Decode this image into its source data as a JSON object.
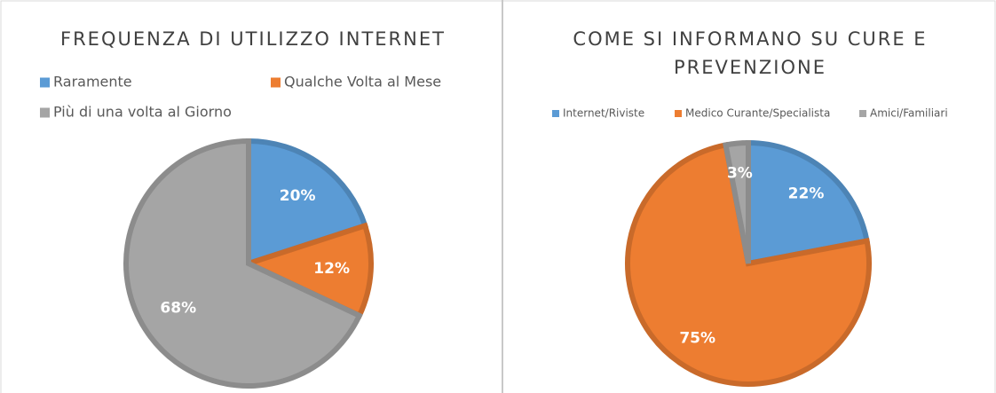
{
  "chart_data": [
    {
      "type": "pie",
      "title": "FREQUENZA DI UTILIZZO INTERNET",
      "categories": [
        "Raramente",
        "Qualche Volta al Mese",
        "Più di una volta al Giorno"
      ],
      "values": [
        20,
        12,
        68
      ],
      "value_labels": [
        "20%",
        "12%",
        "68%"
      ],
      "colors": [
        "#5b9bd5",
        "#ed7d31",
        "#a5a5a5"
      ],
      "legend": "top"
    },
    {
      "type": "pie",
      "title": "COME SI INFORMANO SU CURE E PREVENZIONE",
      "categories": [
        "Internet/Riviste",
        "Medico Curante/Specialista",
        "Amici/Familiari"
      ],
      "values": [
        22,
        75,
        3
      ],
      "value_labels": [
        "22%",
        "75%",
        "3%"
      ],
      "colors": [
        "#5b9bd5",
        "#ed7d31",
        "#a5a5a5"
      ],
      "legend": "top"
    }
  ]
}
